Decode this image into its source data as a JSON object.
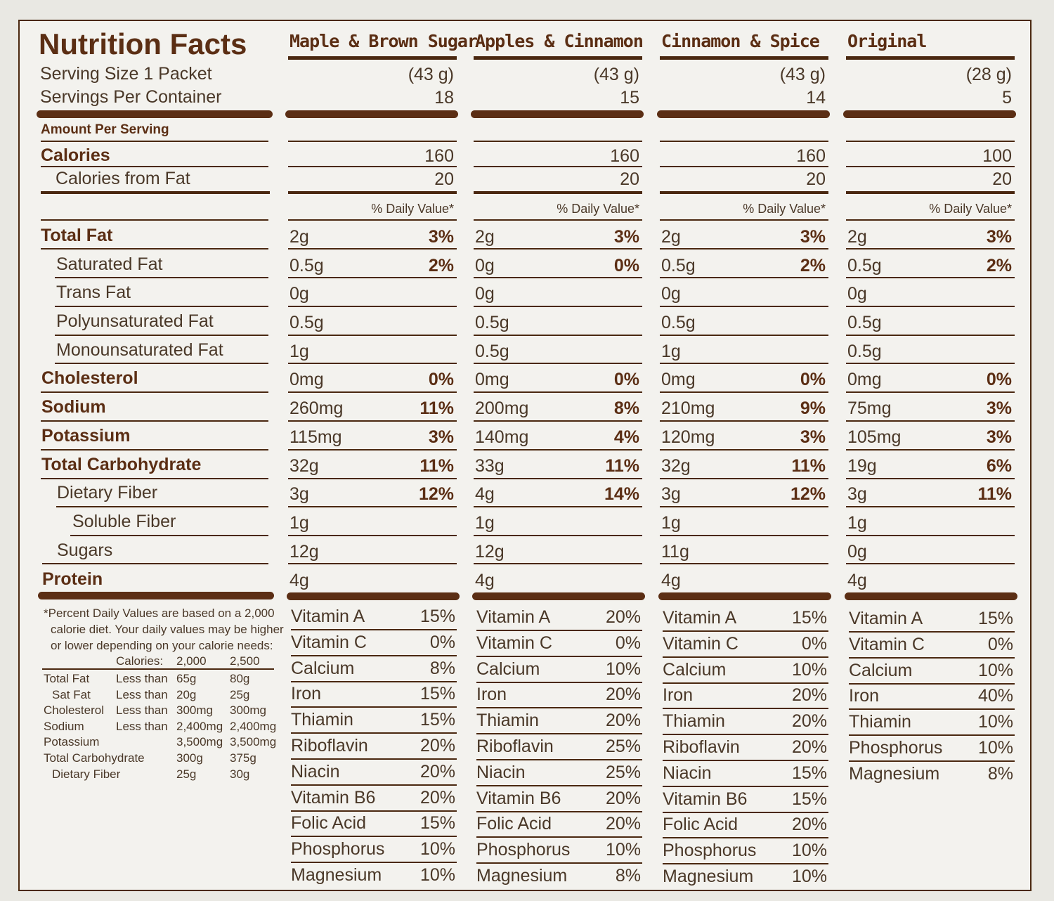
{
  "title": "Nutrition Facts",
  "serving_size_label": "Serving Size 1 Packet",
  "servings_per_container_label": "Servings Per Container",
  "amount_per_serving": "Amount Per Serving",
  "daily_value_header": "% Daily Value*",
  "nutrient_labels": {
    "calories": "Calories",
    "calories_from_fat": "Calories from Fat",
    "total_fat": "Total Fat",
    "saturated_fat": "Saturated Fat",
    "trans_fat": "Trans Fat",
    "polyunsaturated_fat": "Polyunsaturated Fat",
    "monounsaturated_fat": "Monounsaturated Fat",
    "cholesterol": "Cholesterol",
    "sodium": "Sodium",
    "potassium": "Potassium",
    "total_carbohydrate": "Total Carbohydrate",
    "dietary_fiber": "Dietary Fiber",
    "soluble_fiber": "Soluble Fiber",
    "sugars": "Sugars",
    "protein": "Protein"
  },
  "footnote": {
    "line1": "*Percent Daily Values are based on a 2,000",
    "line2": "calorie diet. Your daily values may be higher",
    "line3": "or lower depending on your calorie needs:",
    "header": {
      "label": "Calories:",
      "c1": "2,000",
      "c2": "2,500"
    },
    "rows": [
      {
        "name": "Total Fat",
        "qual": "Less than",
        "c1": "65g",
        "c2": "80g"
      },
      {
        "name": "Sat Fat",
        "qual": "Less than",
        "c1": "20g",
        "c2": "25g"
      },
      {
        "name": "Cholesterol",
        "qual": "Less than",
        "c1": "300mg",
        "c2": "300mg"
      },
      {
        "name": "Sodium",
        "qual": "Less than",
        "c1": "2,400mg",
        "c2": "2,400mg"
      },
      {
        "name": "Potassium",
        "qual": "",
        "c1": "3,500mg",
        "c2": "3,500mg"
      },
      {
        "name": "Total Carbohydrate",
        "qual": "",
        "c1": "300g",
        "c2": "375g"
      },
      {
        "name": "Dietary Fiber",
        "qual": "",
        "c1": "25g",
        "c2": "30g"
      }
    ]
  },
  "columns": [
    {
      "name": "Maple & Brown Sugar",
      "serving_grams": "(43 g)",
      "servings": "18",
      "calories": "160",
      "calories_from_fat": "20",
      "rows": [
        {
          "amt": "2g",
          "dv": "3%"
        },
        {
          "amt": "0.5g",
          "dv": "2%"
        },
        {
          "amt": "0g",
          "dv": ""
        },
        {
          "amt": "0.5g",
          "dv": ""
        },
        {
          "amt": "1g",
          "dv": ""
        },
        {
          "amt": "0mg",
          "dv": "0%"
        },
        {
          "amt": "260mg",
          "dv": "11%"
        },
        {
          "amt": "115mg",
          "dv": "3%"
        },
        {
          "amt": "32g",
          "dv": "11%"
        },
        {
          "amt": "3g",
          "dv": "12%"
        },
        {
          "amt": "1g",
          "dv": ""
        },
        {
          "amt": "12g",
          "dv": ""
        },
        {
          "amt": "4g",
          "dv": ""
        }
      ],
      "vitamins": [
        {
          "name": "Vitamin A",
          "dv": "15%"
        },
        {
          "name": "Vitamin C",
          "dv": "0%"
        },
        {
          "name": "Calcium",
          "dv": "8%"
        },
        {
          "name": "Iron",
          "dv": "15%"
        },
        {
          "name": "Thiamin",
          "dv": "15%"
        },
        {
          "name": "Riboflavin",
          "dv": "20%"
        },
        {
          "name": "Niacin",
          "dv": "20%"
        },
        {
          "name": "Vitamin B6",
          "dv": "20%"
        },
        {
          "name": "Folic Acid",
          "dv": "15%"
        },
        {
          "name": "Phosphorus",
          "dv": "10%"
        },
        {
          "name": "Magnesium",
          "dv": "10%"
        }
      ]
    },
    {
      "name": "Apples & Cinnamon",
      "serving_grams": "(43 g)",
      "servings": "15",
      "calories": "160",
      "calories_from_fat": "20",
      "rows": [
        {
          "amt": "2g",
          "dv": "3%"
        },
        {
          "amt": "0g",
          "dv": "0%"
        },
        {
          "amt": "0g",
          "dv": ""
        },
        {
          "amt": "0.5g",
          "dv": ""
        },
        {
          "amt": "0.5g",
          "dv": ""
        },
        {
          "amt": "0mg",
          "dv": "0%"
        },
        {
          "amt": "200mg",
          "dv": "8%"
        },
        {
          "amt": "140mg",
          "dv": "4%"
        },
        {
          "amt": "33g",
          "dv": "11%"
        },
        {
          "amt": "4g",
          "dv": "14%"
        },
        {
          "amt": "1g",
          "dv": ""
        },
        {
          "amt": "12g",
          "dv": ""
        },
        {
          "amt": "4g",
          "dv": ""
        }
      ],
      "vitamins": [
        {
          "name": "Vitamin A",
          "dv": "20%"
        },
        {
          "name": "Vitamin C",
          "dv": "0%"
        },
        {
          "name": "Calcium",
          "dv": "10%"
        },
        {
          "name": "Iron",
          "dv": "20%"
        },
        {
          "name": "Thiamin",
          "dv": "20%"
        },
        {
          "name": "Riboflavin",
          "dv": "25%"
        },
        {
          "name": "Niacin",
          "dv": "25%"
        },
        {
          "name": "Vitamin B6",
          "dv": "20%"
        },
        {
          "name": "Folic Acid",
          "dv": "20%"
        },
        {
          "name": "Phosphorus",
          "dv": "10%"
        },
        {
          "name": "Magnesium",
          "dv": "8%"
        }
      ]
    },
    {
      "name": "Cinnamon & Spice",
      "serving_grams": "(43 g)",
      "servings": "14",
      "calories": "160",
      "calories_from_fat": "20",
      "rows": [
        {
          "amt": "2g",
          "dv": "3%"
        },
        {
          "amt": "0.5g",
          "dv": "2%"
        },
        {
          "amt": "0g",
          "dv": ""
        },
        {
          "amt": "0.5g",
          "dv": ""
        },
        {
          "amt": "1g",
          "dv": ""
        },
        {
          "amt": "0mg",
          "dv": "0%"
        },
        {
          "amt": "210mg",
          "dv": "9%"
        },
        {
          "amt": "120mg",
          "dv": "3%"
        },
        {
          "amt": "32g",
          "dv": "11%"
        },
        {
          "amt": "3g",
          "dv": "12%"
        },
        {
          "amt": "1g",
          "dv": ""
        },
        {
          "amt": "11g",
          "dv": ""
        },
        {
          "amt": "4g",
          "dv": ""
        }
      ],
      "vitamins": [
        {
          "name": "Vitamin A",
          "dv": "15%"
        },
        {
          "name": "Vitamin C",
          "dv": "0%"
        },
        {
          "name": "Calcium",
          "dv": "10%"
        },
        {
          "name": "Iron",
          "dv": "20%"
        },
        {
          "name": "Thiamin",
          "dv": "20%"
        },
        {
          "name": "Riboflavin",
          "dv": "20%"
        },
        {
          "name": "Niacin",
          "dv": "15%"
        },
        {
          "name": "Vitamin B6",
          "dv": "15%"
        },
        {
          "name": "Folic Acid",
          "dv": "20%"
        },
        {
          "name": "Phosphorus",
          "dv": "10%"
        },
        {
          "name": "Magnesium",
          "dv": "10%"
        }
      ]
    },
    {
      "name": "Original",
      "serving_grams": "(28 g)",
      "servings": "5",
      "calories": "100",
      "calories_from_fat": "20",
      "rows": [
        {
          "amt": "2g",
          "dv": "3%"
        },
        {
          "amt": "0.5g",
          "dv": "2%"
        },
        {
          "amt": "0g",
          "dv": ""
        },
        {
          "amt": "0.5g",
          "dv": ""
        },
        {
          "amt": "0.5g",
          "dv": ""
        },
        {
          "amt": "0mg",
          "dv": "0%"
        },
        {
          "amt": "75mg",
          "dv": "3%"
        },
        {
          "amt": "105mg",
          "dv": "3%"
        },
        {
          "amt": "19g",
          "dv": "6%"
        },
        {
          "amt": "3g",
          "dv": "11%"
        },
        {
          "amt": "1g",
          "dv": ""
        },
        {
          "amt": "0g",
          "dv": ""
        },
        {
          "amt": "4g",
          "dv": ""
        }
      ],
      "vitamins": [
        {
          "name": "Vitamin A",
          "dv": "15%"
        },
        {
          "name": "Vitamin C",
          "dv": "0%"
        },
        {
          "name": "Calcium",
          "dv": "10%"
        },
        {
          "name": "Iron",
          "dv": "40%"
        },
        {
          "name": "Thiamin",
          "dv": "10%"
        },
        {
          "name": "Phosphorus",
          "dv": "10%"
        },
        {
          "name": "Magnesium",
          "dv": "8%"
        }
      ]
    }
  ]
}
